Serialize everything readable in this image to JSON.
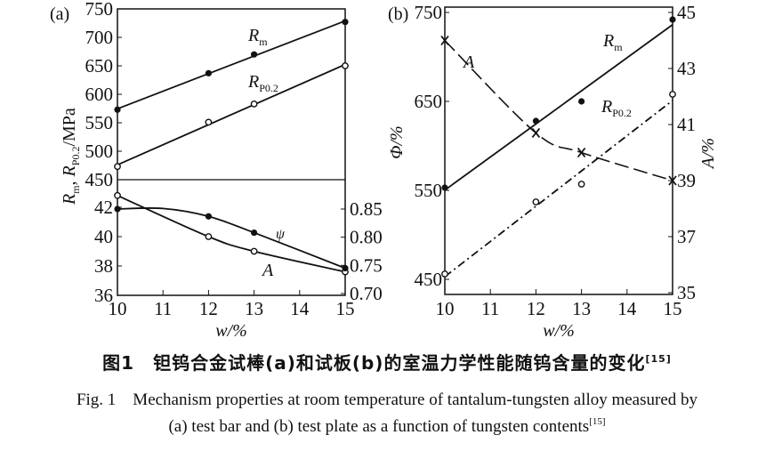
{
  "chart_data": [
    {
      "type": "line",
      "panel_label": "(a)",
      "xlabel": "w/%",
      "x_ticks": [
        10,
        11,
        12,
        13,
        14,
        15
      ],
      "xlim": [
        10,
        15
      ],
      "grid": false,
      "upper": {
        "ylabel": {
          "R": "R",
          "sub1": "m",
          "sep": ", ",
          "R2": "R",
          "sub2": "P0.2",
          "unit": "/MPa"
        },
        "ylim": [
          450,
          750
        ],
        "y_ticks": [
          450,
          500,
          550,
          600,
          650,
          700,
          750
        ],
        "series": [
          {
            "name": "Rm",
            "label": "R",
            "label_sub": "m",
            "marker": "filled-circle",
            "line": "solid",
            "fit": "linear",
            "x": [
              10,
              12,
              13,
              15
            ],
            "y": [
              573,
              637,
              670,
              727
            ]
          },
          {
            "name": "RP0.2",
            "label": "R",
            "label_sub": "P0.2",
            "marker": "open-circle",
            "line": "solid",
            "fit": "linear",
            "x": [
              10,
              12,
              13,
              15
            ],
            "y": [
              473,
              551,
              583,
              650
            ]
          }
        ]
      },
      "lower": {
        "ylim_left": [
          36,
          42.8
        ],
        "y_ticks_left": [
          36,
          38,
          40,
          42
        ],
        "ylim_right": [
          0.7,
          0.85
        ],
        "y_ticks_right": [
          "0.70",
          "0.75",
          "0.80",
          "0.85"
        ],
        "series": [
          {
            "name": "A",
            "label": "A",
            "axis": "left",
            "marker": "open-circle",
            "line": "solid",
            "x": [
              10,
              12,
              13,
              15
            ],
            "y": [
              42.8,
              40.0,
              39.0,
              37.6
            ]
          },
          {
            "name": "ψ",
            "label": "ψ",
            "axis": "right",
            "marker": "filled-circle",
            "line": "solid",
            "x": [
              10,
              11,
              12,
              13,
              15
            ],
            "y": [
              0.85,
              0.851,
              0.837,
              0.808,
              0.745
            ]
          }
        ]
      }
    },
    {
      "type": "line",
      "panel_label": "(b)",
      "xlabel": "w/%",
      "x_ticks": [
        10,
        11,
        12,
        13,
        14,
        15
      ],
      "xlim": [
        10,
        15
      ],
      "grid": false,
      "ylabel_left": "Φ/%",
      "ylim_left": [
        433,
        750
      ],
      "y_ticks_left": [
        450,
        550,
        650,
        750
      ],
      "ylabel_right": "A/%",
      "ylim_right": [
        35,
        45
      ],
      "y_ticks_right": [
        35,
        37,
        39,
        41,
        43,
        45
      ],
      "series": [
        {
          "name": "Rm",
          "label": "R",
          "label_sub": "m",
          "axis": "left",
          "marker": "filled-circle",
          "line": "solid",
          "fit": "linear",
          "x": [
            10,
            12,
            13,
            15
          ],
          "y": [
            553,
            628,
            650,
            742
          ]
        },
        {
          "name": "RP0.2",
          "label": "R",
          "label_sub": "P0.2",
          "axis": "left",
          "marker": "open-circle",
          "line": "dash-dot",
          "fit": "linear",
          "x": [
            10,
            12,
            13,
            15
          ],
          "y": [
            456,
            537,
            557,
            658
          ]
        },
        {
          "name": "A",
          "label": "A",
          "axis": "right",
          "marker": "x-cross",
          "line": "long-dash",
          "x": [
            10,
            12,
            13,
            15
          ],
          "y": [
            44.0,
            40.7,
            40.0,
            39.0
          ]
        }
      ]
    }
  ],
  "caption": {
    "cn": "图1　钽钨合金试棒(a)和试板(b)的室温力学性能随钨含量的变化",
    "cn_ref": "[15]",
    "en_line1": "Fig. 1　Mechanism properties at room temperature of tantalum-tungsten alloy measured by",
    "en_line2": "(a) test bar and (b) test plate as a function of tungsten contents",
    "en_ref": "[15]"
  }
}
